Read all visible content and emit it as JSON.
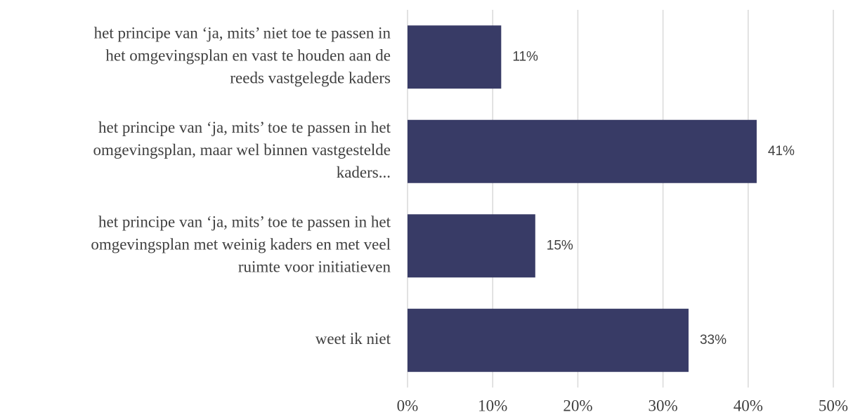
{
  "chart_data": {
    "type": "hbar",
    "categories": [
      [
        "het principe van ‘ja, mits’ niet toe te passen in",
        "het omgevingsplan en vast te houden aan de",
        "reeds vastgelegde kaders"
      ],
      [
        "het principe van ‘ja, mits’ toe te passen in het",
        "omgevingsplan, maar wel binnen vastgestelde",
        "kaders..."
      ],
      [
        "het principe van ‘ja, mits’ toe te passen in het",
        "omgevingsplan met weinig kaders en met veel",
        "ruimte voor initiatieven"
      ],
      [
        "weet ik niet"
      ]
    ],
    "values": [
      11,
      41,
      15,
      33
    ],
    "value_labels": [
      "11%",
      "41%",
      "15%",
      "33%"
    ],
    "color": "#383b66",
    "xlim": [
      0,
      50
    ],
    "xticks": [
      {
        "value": 0,
        "label": "0%"
      },
      {
        "value": 10,
        "label": "10%"
      },
      {
        "value": 20,
        "label": "20%"
      },
      {
        "value": 30,
        "label": "30%"
      },
      {
        "value": 40,
        "label": "40%"
      },
      {
        "value": 50,
        "label": "50%"
      }
    ],
    "grid": true
  }
}
